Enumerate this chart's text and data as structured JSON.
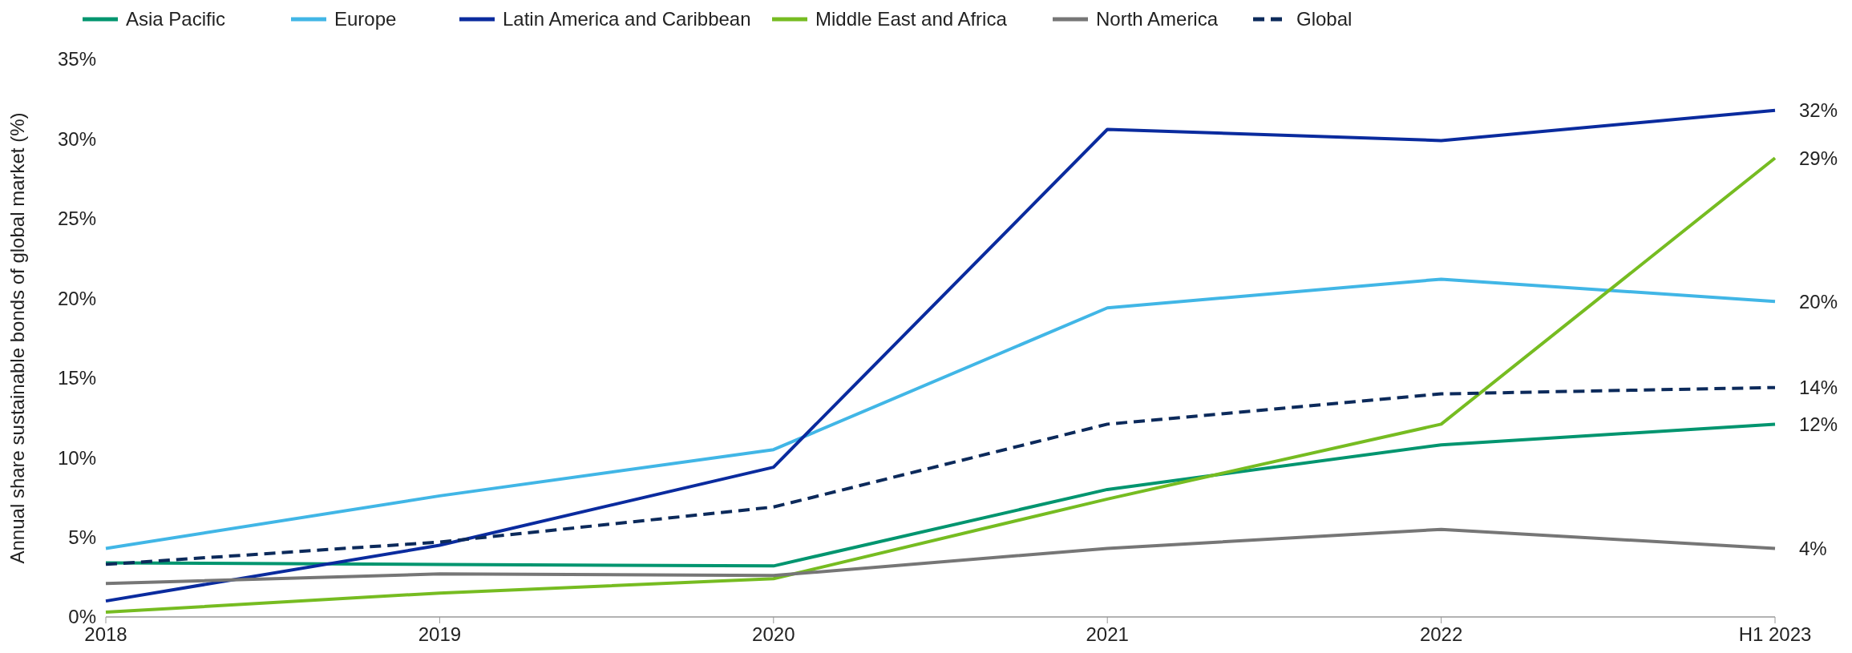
{
  "chart_data": {
    "type": "line",
    "ylabel": "Annual share sustainable bonds of global market (%)",
    "categories": [
      "2018",
      "2019",
      "2020",
      "2021",
      "2022",
      "H1 2023"
    ],
    "ylim": [
      0,
      35
    ],
    "yticks": [
      {
        "value": 0,
        "label": "0%"
      },
      {
        "value": 5,
        "label": "5%"
      },
      {
        "value": 10,
        "label": "10%"
      },
      {
        "value": 15,
        "label": "15%"
      },
      {
        "value": 20,
        "label": "20%"
      },
      {
        "value": 25,
        "label": "25%"
      },
      {
        "value": 30,
        "label": "30%"
      },
      {
        "value": 35,
        "label": "35%"
      }
    ],
    "grid": false,
    "legend": "top",
    "marker": "none",
    "series": [
      {
        "name": "Asia Pacific",
        "color": "#00956f",
        "values": [
          3.4,
          3.3,
          3.2,
          8.0,
          10.8,
          12.1
        ],
        "value_labels": [
          null,
          null,
          null,
          null,
          null,
          "12%"
        ]
      },
      {
        "name": "Europe",
        "color": "#41b6e6",
        "values": [
          4.3,
          7.6,
          10.5,
          19.4,
          21.2,
          19.8
        ],
        "value_labels": [
          null,
          null,
          null,
          null,
          null,
          "20%"
        ]
      },
      {
        "name": "Latin America and Caribbean",
        "color": "#0a2b9e",
        "values": [
          1.0,
          4.5,
          9.4,
          30.6,
          29.9,
          31.8
        ],
        "value_labels": [
          null,
          null,
          null,
          null,
          null,
          "32%"
        ]
      },
      {
        "name": "Middle East and Africa",
        "color": "#76bc21",
        "values": [
          0.3,
          1.5,
          2.4,
          7.4,
          12.1,
          28.8
        ],
        "value_labels": [
          null,
          null,
          null,
          null,
          null,
          "29%"
        ]
      },
      {
        "name": "North America",
        "color": "#767676",
        "values": [
          2.1,
          2.7,
          2.6,
          4.3,
          5.5,
          4.3
        ],
        "value_labels": [
          null,
          null,
          null,
          null,
          null,
          "4%"
        ]
      },
      {
        "name": "Global",
        "color": "#0c2a5b",
        "line_style": "dashed",
        "values": [
          3.3,
          4.7,
          6.9,
          12.1,
          14.0,
          14.4
        ],
        "value_labels": [
          null,
          null,
          null,
          null,
          null,
          "14%"
        ]
      }
    ]
  }
}
